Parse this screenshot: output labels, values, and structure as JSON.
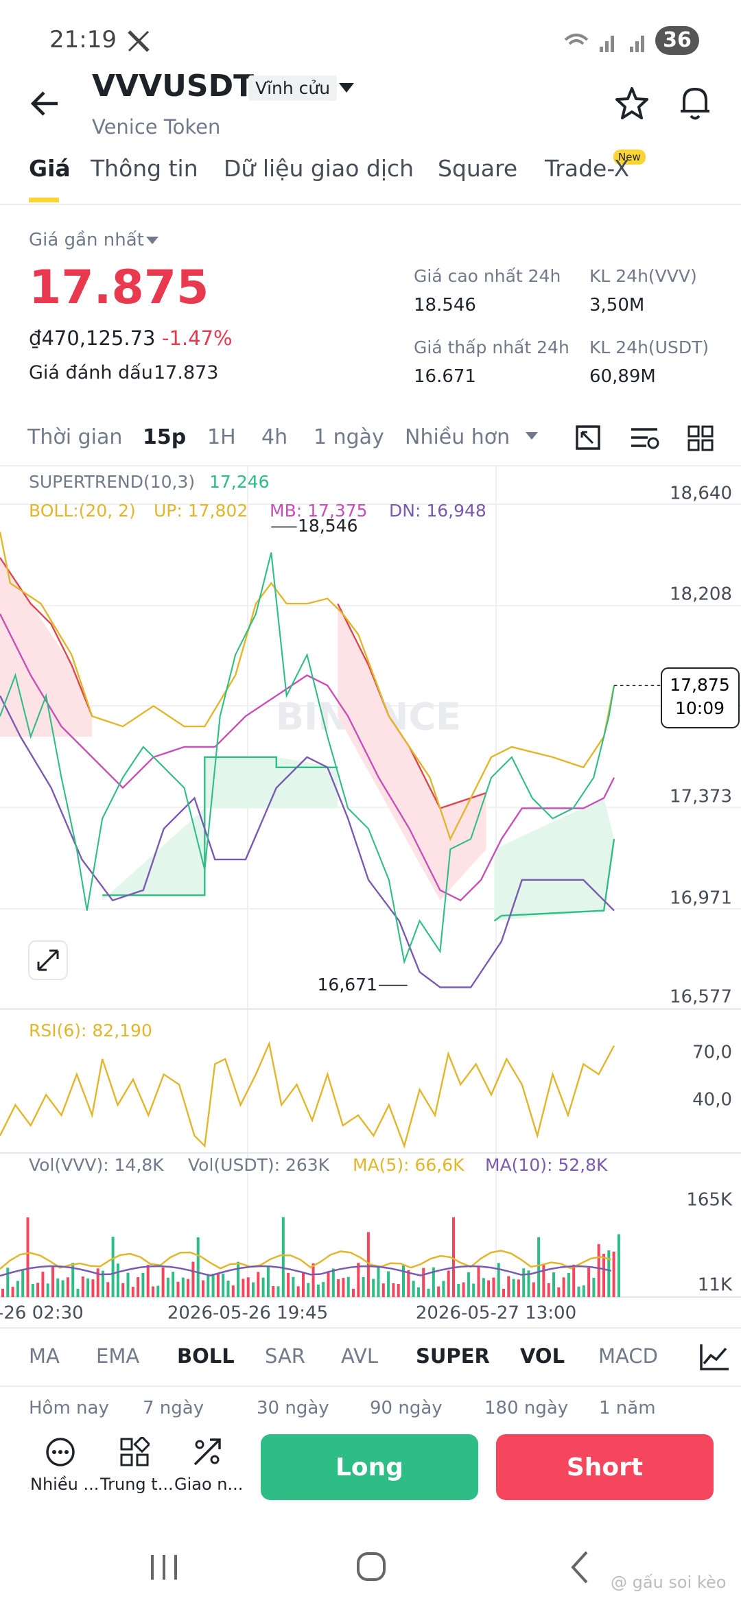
{
  "status": {
    "time": "21:19",
    "battery": "36"
  },
  "header": {
    "symbol": "VVVUSDT",
    "contract": "Vĩnh cửu",
    "name": "Venice Token"
  },
  "tabs": [
    "Giá",
    "Thông tin",
    "Dữ liệu giao dịch",
    "Square",
    "Trade-X"
  ],
  "tab_badge": "New",
  "price": {
    "label": "Giá gần nhất",
    "last": "17.875",
    "fiat": "₫470,125.73",
    "change": "-1.47%",
    "mark_label": "Giá đánh dấu",
    "mark": "17.873"
  },
  "stats": [
    {
      "label": "Giá cao nhất 24h",
      "value": "18.546"
    },
    {
      "label": "KL 24h(VVV)",
      "value": "3,50M"
    },
    {
      "label": "Giá thấp nhất 24h",
      "value": "16.671"
    },
    {
      "label": "KL 24h(USDT)",
      "value": "60,89M"
    }
  ],
  "intervals": [
    "Thời gian",
    "15p",
    "1H",
    "4h",
    "1 ngày",
    "Nhiều hơn"
  ],
  "chart": {
    "supertrend_label": "SUPERTREND(10,3)",
    "supertrend_value": "17,246",
    "boll_label": "BOLL:(20, 2)",
    "boll_up": "UP: 17,802",
    "boll_mb": "MB: 17,375",
    "boll_dn": "DN: 16,948",
    "price_axis": [
      "18,640",
      "18,208",
      "17,373",
      "16,971",
      "16,577"
    ],
    "high_marker": "18,546",
    "low_marker": "16,671",
    "current_price": "17,875",
    "countdown": "10:09",
    "watermark": "BINANCE",
    "rsi_label": "RSI(6): 82,190",
    "rsi_axis": [
      "70,0",
      "40,0"
    ],
    "vol_labels": [
      "Vol(VVV): 14,8K",
      "Vol(USDT): 263K",
      "MA(5): 66,6K",
      "MA(10): 52,8K"
    ],
    "vol_axis": [
      "165K",
      "11K"
    ],
    "time_axis": [
      "-26 02:30",
      "2026-05-26 19:45",
      "2026-05-27 13:00"
    ]
  },
  "indicators": [
    "MA",
    "EMA",
    "BOLL",
    "SAR",
    "AVL",
    "SUPER",
    "VOL",
    "MACD"
  ],
  "periods": [
    "Hôm nay",
    "7 ngày",
    "30 ngày",
    "90 ngày",
    "180 ngày",
    "1 năm"
  ],
  "actions": [
    "Nhiều ...",
    "Trung t...",
    "Giao n..."
  ],
  "buttons": {
    "long": "Long",
    "short": "Short"
  },
  "watermark": "@ gấu soi kèo"
}
